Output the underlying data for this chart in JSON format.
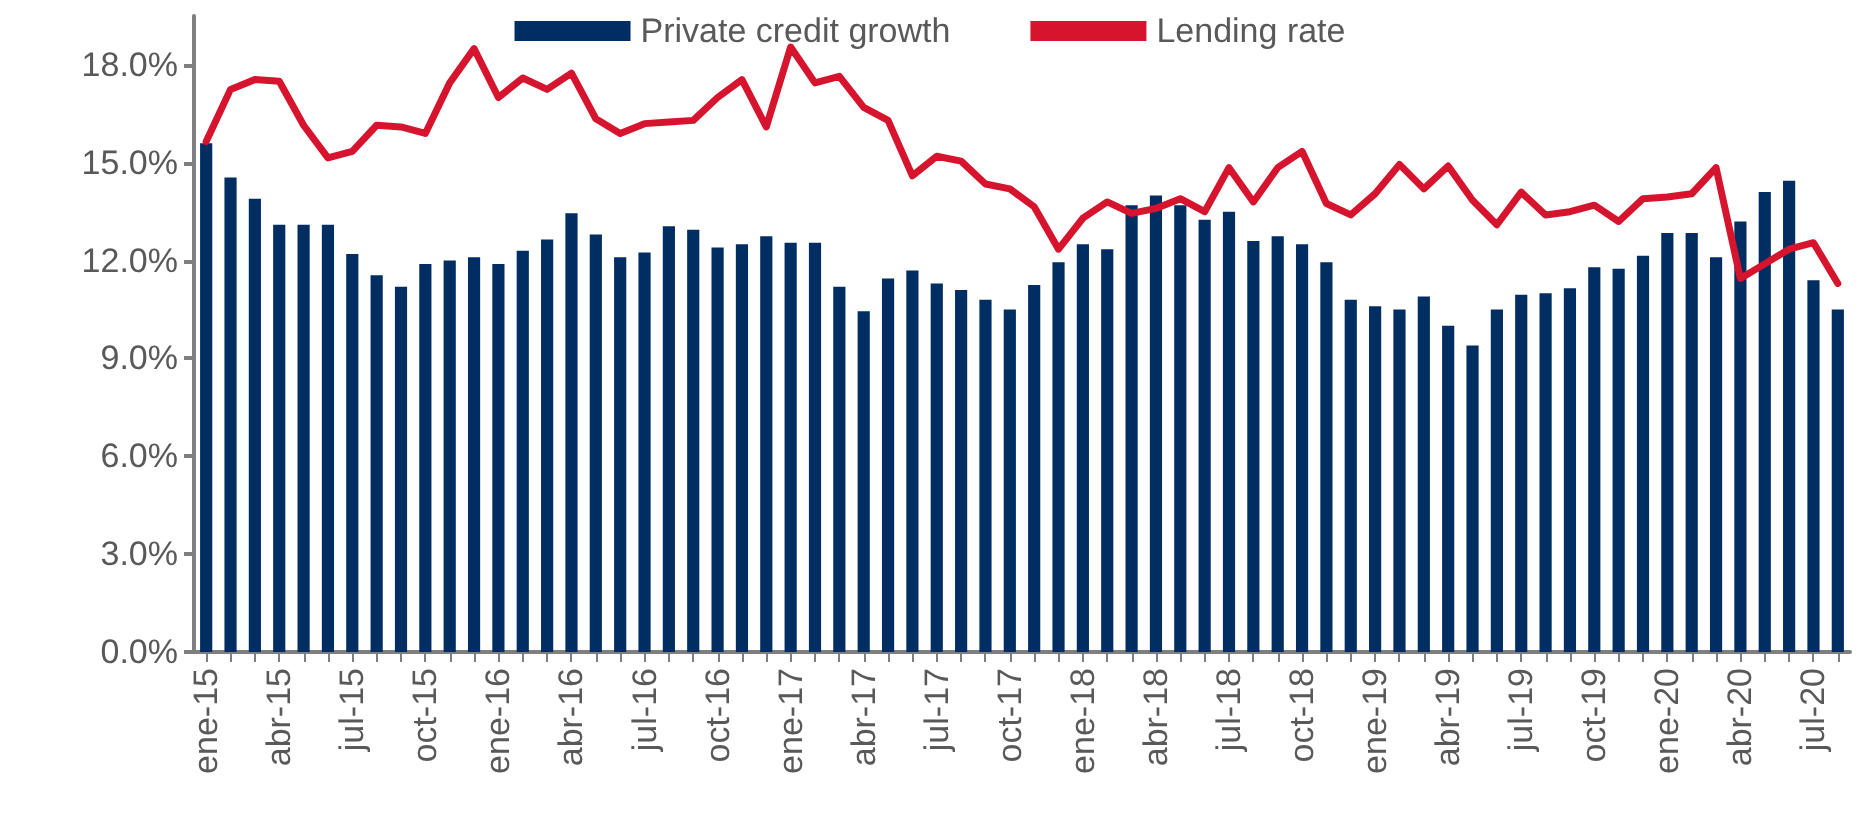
{
  "chart_data": {
    "type": "bar",
    "categories": [
      "ene-15",
      null,
      null,
      "abr-15",
      null,
      null,
      "jul-15",
      null,
      null,
      "oct-15",
      null,
      null,
      "ene-16",
      null,
      null,
      "abr-16",
      null,
      null,
      "jul-16",
      null,
      null,
      "oct-16",
      null,
      null,
      "ene-17",
      null,
      null,
      "abr-17",
      null,
      null,
      "jul-17",
      null,
      null,
      "oct-17",
      null,
      null,
      "ene-18",
      null,
      null,
      "abr-18",
      null,
      null,
      "jul-18",
      null,
      null,
      "oct-18",
      null,
      null,
      "ene-19",
      null,
      null,
      "abr-19",
      null,
      null,
      "jul-19",
      null,
      null,
      "oct-19",
      null,
      null,
      "ene-20",
      null,
      null,
      "abr-20",
      null,
      null,
      "jul-20",
      null
    ],
    "series": [
      {
        "name": "Private credit growth",
        "color": "#002d62",
        "values": [
          15.6,
          14.55,
          13.9,
          13.1,
          13.1,
          13.1,
          12.2,
          11.55,
          11.2,
          11.9,
          12.0,
          12.1,
          11.9,
          12.3,
          12.65,
          13.45,
          12.8,
          12.1,
          12.25,
          13.05,
          12.95,
          12.4,
          12.5,
          12.75,
          12.55,
          12.55,
          11.2,
          10.45,
          11.45,
          11.7,
          11.3,
          11.1,
          10.8,
          10.5,
          11.25,
          11.95,
          12.5,
          12.35,
          13.7,
          14.0,
          13.7,
          13.25,
          13.5,
          12.6,
          12.75,
          12.5,
          11.95,
          10.8,
          10.6,
          10.5,
          10.9,
          10.0,
          9.4,
          10.5,
          10.95,
          11.0,
          11.15,
          11.8,
          11.75,
          12.15,
          12.85,
          12.85,
          12.1,
          13.2,
          14.1,
          14.45,
          11.4,
          10.5
        ]
      },
      {
        "name": "Lending rate",
        "type": "line",
        "color": "#d7142e",
        "values": [
          15.65,
          17.25,
          17.55,
          17.5,
          16.15,
          15.15,
          15.35,
          16.15,
          16.1,
          15.9,
          17.45,
          18.5,
          17.0,
          17.6,
          17.25,
          17.75,
          16.35,
          15.9,
          16.2,
          16.25,
          16.3,
          17.0,
          17.55,
          16.1,
          18.55,
          17.45,
          17.65,
          16.7,
          16.3,
          14.6,
          15.2,
          15.05,
          14.35,
          14.2,
          13.65,
          12.35,
          13.3,
          13.8,
          13.45,
          13.6,
          13.9,
          13.5,
          14.85,
          13.8,
          14.85,
          15.35,
          13.75,
          13.4,
          14.05,
          14.95,
          14.2,
          14.9,
          13.85,
          13.1,
          14.1,
          13.4,
          13.5,
          13.7,
          13.2,
          13.9,
          13.95,
          14.05,
          14.85,
          11.45,
          11.9,
          12.35,
          12.55,
          11.3
        ]
      }
    ],
    "ylim": [
      0,
      19.5
    ],
    "yticks": [
      {
        "value": 0,
        "label": "0.0%"
      },
      {
        "value": 3,
        "label": "3.0%"
      },
      {
        "value": 6,
        "label": "6.0%"
      },
      {
        "value": 9,
        "label": "9.0%"
      },
      {
        "value": 12,
        "label": "12.0%"
      },
      {
        "value": 15,
        "label": "15.0%"
      },
      {
        "value": 18,
        "label": "18.0%"
      }
    ],
    "grid": false,
    "legend": "top"
  }
}
